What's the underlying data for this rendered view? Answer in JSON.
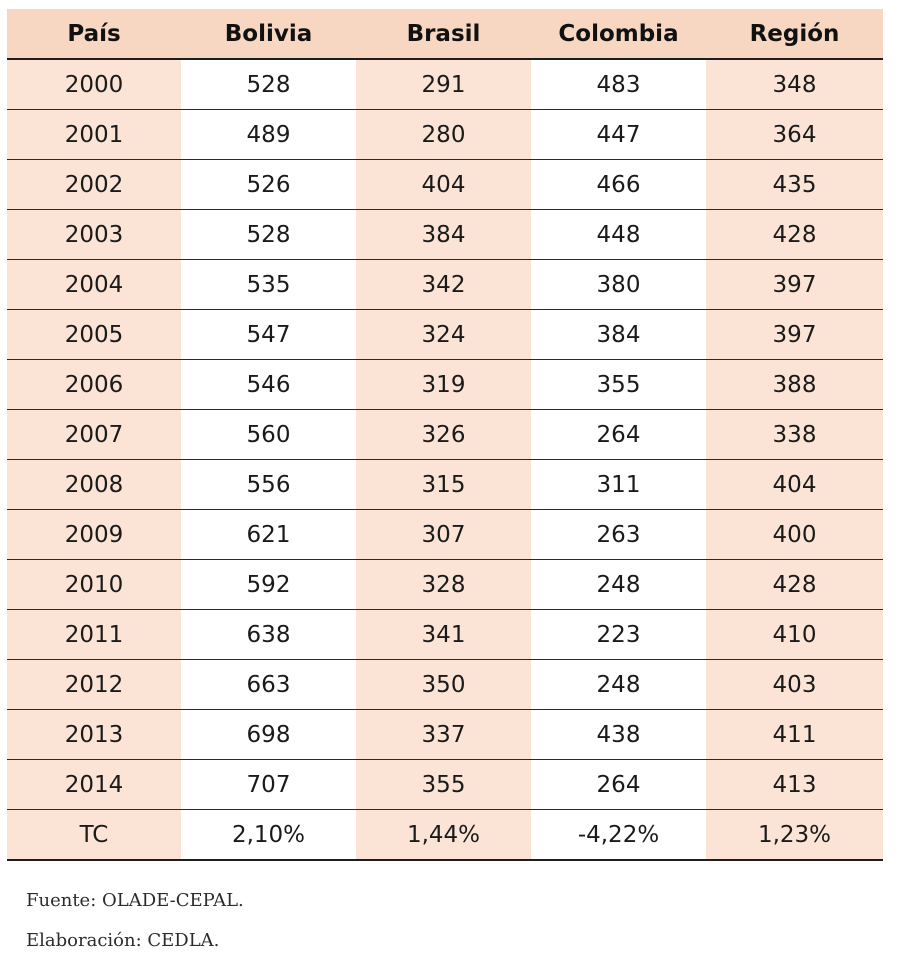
{
  "table": {
    "headers": [
      "País",
      "Bolivia",
      "Brasil",
      "Colombia",
      "Región"
    ],
    "rows": [
      [
        "2000",
        "528",
        "291",
        "483",
        "348"
      ],
      [
        "2001",
        "489",
        "280",
        "447",
        "364"
      ],
      [
        "2002",
        "526",
        "404",
        "466",
        "435"
      ],
      [
        "2003",
        "528",
        "384",
        "448",
        "428"
      ],
      [
        "2004",
        "535",
        "342",
        "380",
        "397"
      ],
      [
        "2005",
        "547",
        "324",
        "384",
        "397"
      ],
      [
        "2006",
        "546",
        "319",
        "355",
        "388"
      ],
      [
        "2007",
        "560",
        "326",
        "264",
        "338"
      ],
      [
        "2008",
        "556",
        "315",
        "311",
        "404"
      ],
      [
        "2009",
        "621",
        "307",
        "263",
        "400"
      ],
      [
        "2010",
        "592",
        "328",
        "248",
        "428"
      ],
      [
        "2011",
        "638",
        "341",
        "223",
        "410"
      ],
      [
        "2012",
        "663",
        "350",
        "248",
        "403"
      ],
      [
        "2013",
        "698",
        "337",
        "438",
        "411"
      ],
      [
        "2014",
        "707",
        "355",
        "264",
        "413"
      ]
    ],
    "tc_row": [
      "TC",
      "2,10%",
      "1,44%",
      "-4,22%",
      "1,23%"
    ]
  },
  "notes": {
    "source": "Fuente: OLADE-CEPAL.",
    "elaboration": "Elaboración: CEDLA."
  },
  "colors": {
    "header_fill": "#f7d7c1",
    "shaded_column_fill": "#fbe4d5",
    "plain_column_fill": "#ffffff",
    "rule_color": "#1e1e1e"
  }
}
